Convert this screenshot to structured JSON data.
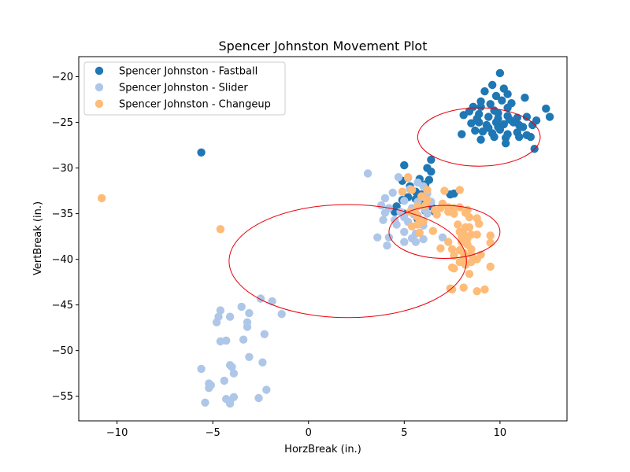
{
  "chart_data": {
    "type": "scatter",
    "title": "Spencer Johnston Movement Plot",
    "xlabel": "HorzBreak (in.)",
    "ylabel": "VertBreak (in.)",
    "xlim": [
      -12,
      13.5
    ],
    "ylim": [
      -57.7,
      -17.8
    ],
    "xticks": [
      -10,
      -5,
      0,
      5,
      10
    ],
    "yticks": [
      -20,
      -25,
      -30,
      -35,
      -40,
      -45,
      -50,
      -55
    ],
    "legend_position": "upper-left",
    "grid": false,
    "series": [
      {
        "name": "Spencer Johnston - Fastball",
        "color": "#1f77b4",
        "points": [
          [
            -5.6,
            -28.3
          ],
          [
            10.0,
            -19.6
          ],
          [
            9.6,
            -20.9
          ],
          [
            10.2,
            -21.3
          ],
          [
            9.2,
            -21.6
          ],
          [
            9.8,
            -22.1
          ],
          [
            10.4,
            -21.9
          ],
          [
            11.3,
            -22.3
          ],
          [
            9.0,
            -22.7
          ],
          [
            9.5,
            -23.0
          ],
          [
            10.1,
            -22.6
          ],
          [
            10.6,
            -22.9
          ],
          [
            8.6,
            -23.3
          ],
          [
            9.0,
            -23.3
          ],
          [
            9.7,
            -23.7
          ],
          [
            10.4,
            -23.4
          ],
          [
            12.4,
            -23.5
          ],
          [
            8.1,
            -24.2
          ],
          [
            8.4,
            -23.8
          ],
          [
            8.9,
            -24.1
          ],
          [
            9.4,
            -24.4
          ],
          [
            9.9,
            -24.0
          ],
          [
            10.4,
            -24.3
          ],
          [
            10.9,
            -24.5
          ],
          [
            11.4,
            -24.4
          ],
          [
            11.9,
            -24.8
          ],
          [
            12.6,
            -24.4
          ],
          [
            8.5,
            -25.1
          ],
          [
            8.9,
            -25.0
          ],
          [
            9.3,
            -25.3
          ],
          [
            9.8,
            -25.0
          ],
          [
            10.2,
            -25.2
          ],
          [
            10.7,
            -25.0
          ],
          [
            11.2,
            -25.5
          ],
          [
            11.7,
            -25.3
          ],
          [
            8.7,
            -25.9
          ],
          [
            9.1,
            -26.0
          ],
          [
            9.6,
            -26.2
          ],
          [
            10.0,
            -25.8
          ],
          [
            10.4,
            -26.3
          ],
          [
            10.9,
            -26.1
          ],
          [
            11.4,
            -26.4
          ],
          [
            8.0,
            -26.3
          ],
          [
            9.7,
            -26.6
          ],
          [
            10.3,
            -26.7
          ],
          [
            11.0,
            -26.6
          ],
          [
            11.6,
            -26.6
          ],
          [
            9.0,
            -26.9
          ],
          [
            10.3,
            -27.3
          ],
          [
            11.8,
            -27.9
          ],
          [
            9.9,
            -24.6
          ],
          [
            10.5,
            -24.7
          ],
          [
            11.0,
            -25.3
          ],
          [
            9.4,
            -25.6
          ],
          [
            8.8,
            -24.6
          ],
          [
            9.9,
            -25.5
          ],
          [
            6.4,
            -29.1
          ],
          [
            5.0,
            -29.7
          ],
          [
            6.2,
            -30.0
          ],
          [
            6.4,
            -30.4
          ],
          [
            5.8,
            -31.2
          ],
          [
            6.3,
            -31.3
          ],
          [
            6.1,
            -31.8
          ],
          [
            5.3,
            -32.0
          ],
          [
            5.6,
            -32.6
          ],
          [
            5.9,
            -32.9
          ],
          [
            5.2,
            -33.2
          ],
          [
            4.9,
            -33.5
          ],
          [
            5.6,
            -33.4
          ],
          [
            5.9,
            -34.0
          ],
          [
            6.4,
            -34.2
          ],
          [
            4.6,
            -34.2
          ],
          [
            4.5,
            -34.8
          ],
          [
            5.0,
            -35.0
          ],
          [
            6.1,
            -34.7
          ],
          [
            6.6,
            -34.8
          ],
          [
            7.6,
            -32.8
          ],
          [
            7.4,
            -32.9
          ],
          [
            5.7,
            -35.6
          ],
          [
            4.9,
            -31.4
          ]
        ]
      },
      {
        "name": "Spencer Johnston - Slider",
        "color": "#aec7e8",
        "points": [
          [
            3.1,
            -30.6
          ],
          [
            4.7,
            -31.0
          ],
          [
            5.2,
            -31.1
          ],
          [
            5.7,
            -31.6
          ],
          [
            6.0,
            -32.0
          ],
          [
            5.3,
            -32.3
          ],
          [
            4.4,
            -32.7
          ],
          [
            6.2,
            -32.8
          ],
          [
            4.0,
            -33.3
          ],
          [
            5.0,
            -33.6
          ],
          [
            5.7,
            -33.7
          ],
          [
            6.4,
            -33.7
          ],
          [
            3.8,
            -34.1
          ],
          [
            4.2,
            -34.4
          ],
          [
            4.8,
            -34.8
          ],
          [
            5.4,
            -34.4
          ],
          [
            6.1,
            -34.6
          ],
          [
            4.0,
            -34.9
          ],
          [
            5.0,
            -35.4
          ],
          [
            5.5,
            -35.1
          ],
          [
            6.0,
            -35.8
          ],
          [
            3.9,
            -35.7
          ],
          [
            4.5,
            -35.7
          ],
          [
            5.2,
            -35.9
          ],
          [
            5.7,
            -35.2
          ],
          [
            6.2,
            -35.0
          ],
          [
            4.6,
            -36.2
          ],
          [
            6.0,
            -36.3
          ],
          [
            5.0,
            -37.0
          ],
          [
            5.6,
            -37.2
          ],
          [
            3.6,
            -37.6
          ],
          [
            4.2,
            -37.6
          ],
          [
            5.4,
            -37.7
          ],
          [
            6.0,
            -37.8
          ],
          [
            7.0,
            -37.6
          ],
          [
            5.0,
            -38.1
          ],
          [
            4.1,
            -38.5
          ],
          [
            5.6,
            -38.1
          ],
          [
            -2.5,
            -44.3
          ],
          [
            -1.9,
            -44.6
          ],
          [
            -3.5,
            -45.2
          ],
          [
            -4.6,
            -45.6
          ],
          [
            -1.4,
            -46.0
          ],
          [
            -4.7,
            -46.3
          ],
          [
            -3.1,
            -45.9
          ],
          [
            -4.1,
            -46.3
          ],
          [
            -4.8,
            -46.9
          ],
          [
            -3.2,
            -46.9
          ],
          [
            -3.2,
            -47.4
          ],
          [
            -2.3,
            -48.2
          ],
          [
            -4.6,
            -49.0
          ],
          [
            -4.3,
            -48.9
          ],
          [
            -3.4,
            -48.8
          ],
          [
            -3.1,
            -50.7
          ],
          [
            -2.4,
            -51.3
          ],
          [
            -4.1,
            -51.6
          ],
          [
            -4.0,
            -51.8
          ],
          [
            -3.9,
            -52.5
          ],
          [
            -5.6,
            -52.0
          ],
          [
            -4.4,
            -53.3
          ],
          [
            -5.2,
            -53.6
          ],
          [
            -5.1,
            -53.8
          ],
          [
            -5.2,
            -54.1
          ],
          [
            -2.2,
            -54.3
          ],
          [
            -3.9,
            -55.1
          ],
          [
            -4.3,
            -55.3
          ],
          [
            -4.1,
            -55.5
          ],
          [
            -2.6,
            -55.2
          ],
          [
            -5.4,
            -55.7
          ],
          [
            -4.1,
            -55.8
          ]
        ]
      },
      {
        "name": "Spencer Johnston - Changeup",
        "color": "#ffbb78",
        "points": [
          [
            -10.8,
            -33.3
          ],
          [
            -4.6,
            -36.7
          ],
          [
            5.2,
            -31.0
          ],
          [
            5.4,
            -32.4
          ],
          [
            6.2,
            -32.4
          ],
          [
            7.1,
            -32.5
          ],
          [
            7.9,
            -32.4
          ],
          [
            4.9,
            -32.6
          ],
          [
            5.9,
            -33.1
          ],
          [
            6.2,
            -33.5
          ],
          [
            5.7,
            -34.2
          ],
          [
            6.1,
            -34.1
          ],
          [
            6.6,
            -34.6
          ],
          [
            6.9,
            -34.4
          ],
          [
            7.3,
            -34.3
          ],
          [
            7.6,
            -34.4
          ],
          [
            7.9,
            -34.3
          ],
          [
            8.3,
            -34.6
          ],
          [
            5.3,
            -34.8
          ],
          [
            5.6,
            -35.0
          ],
          [
            6.7,
            -35.1
          ],
          [
            7.3,
            -34.8
          ],
          [
            7.6,
            -35.0
          ],
          [
            8.2,
            -34.9
          ],
          [
            8.8,
            -35.5
          ],
          [
            5.7,
            -35.4
          ],
          [
            8.4,
            -35.4
          ],
          [
            5.4,
            -36.4
          ],
          [
            5.7,
            -36.2
          ],
          [
            7.8,
            -36.2
          ],
          [
            8.2,
            -36.5
          ],
          [
            8.4,
            -36.5
          ],
          [
            8.9,
            -36.1
          ],
          [
            5.8,
            -37.1
          ],
          [
            7.9,
            -37.0
          ],
          [
            8.1,
            -37.2
          ],
          [
            8.5,
            -37.3
          ],
          [
            9.5,
            -37.4
          ],
          [
            8.0,
            -37.6
          ],
          [
            8.3,
            -37.7
          ],
          [
            8.8,
            -37.3
          ],
          [
            7.3,
            -38.1
          ],
          [
            8.0,
            -38.1
          ],
          [
            8.3,
            -38.4
          ],
          [
            9.5,
            -38.2
          ],
          [
            6.9,
            -38.8
          ],
          [
            7.5,
            -38.9
          ],
          [
            7.9,
            -39.0
          ],
          [
            8.1,
            -39.3
          ],
          [
            8.5,
            -38.9
          ],
          [
            7.6,
            -39.6
          ],
          [
            8.1,
            -39.9
          ],
          [
            8.5,
            -39.5
          ],
          [
            9.0,
            -39.5
          ],
          [
            7.9,
            -40.3
          ],
          [
            8.5,
            -40.3
          ],
          [
            8.8,
            -40.0
          ],
          [
            7.5,
            -40.9
          ],
          [
            7.6,
            -41.0
          ],
          [
            8.2,
            -40.6
          ],
          [
            9.5,
            -40.8
          ],
          [
            8.4,
            -41.6
          ],
          [
            7.4,
            -43.2
          ],
          [
            7.5,
            -43.3
          ],
          [
            8.1,
            -43.1
          ],
          [
            8.8,
            -43.5
          ],
          [
            9.2,
            -43.3
          ],
          [
            6.0,
            -35.8
          ],
          [
            7.0,
            -33.9
          ],
          [
            6.5,
            -36.9
          ]
        ]
      }
    ],
    "ellipses": [
      {
        "cx": 8.9,
        "cy": -26.6,
        "rx": 3.2,
        "ry": 3.2,
        "color": "#e8000b"
      },
      {
        "cx": 2.05,
        "cy": -40.2,
        "rx": 6.2,
        "ry": 6.2,
        "color": "#e8000b"
      },
      {
        "cx": 7.1,
        "cy": -37.0,
        "rx": 2.9,
        "ry": 2.9,
        "color": "#e8000b"
      }
    ]
  }
}
